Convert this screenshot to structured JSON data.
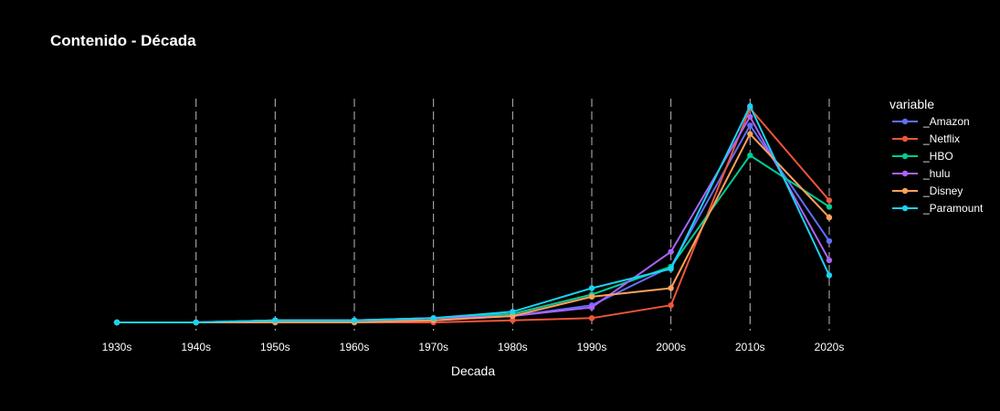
{
  "chart_data": {
    "type": "line",
    "title": "Contenido - Década",
    "xlabel": "Decada",
    "ylabel": "",
    "categories": [
      "1930s",
      "1940s",
      "1950s",
      "1960s",
      "1970s",
      "1980s",
      "1990s",
      "2000s",
      "2010s",
      "2020s"
    ],
    "ylim": [
      0,
      100
    ],
    "grid": "vertical dashed",
    "legend": {
      "title": "variable",
      "placement": "right"
    },
    "series": [
      {
        "name": "_Amazon",
        "color": "#636efa",
        "values": [
          0,
          0,
          1,
          1,
          1,
          3,
          8,
          26,
          92,
          38
        ]
      },
      {
        "name": "_Netflix",
        "color": "#ef553b",
        "values": [
          0,
          0,
          0,
          0,
          0,
          1,
          2,
          8,
          100,
          57
        ]
      },
      {
        "name": "_HBO",
        "color": "#00cc96",
        "values": [
          0,
          0,
          1,
          1,
          2,
          4,
          13,
          26,
          78,
          54
        ]
      },
      {
        "name": "_hulu",
        "color": "#ab63fa",
        "values": [
          0,
          0,
          1,
          1,
          2,
          3,
          7,
          33,
          96,
          29
        ]
      },
      {
        "name": "_Disney",
        "color": "#ffa15a",
        "values": [
          0,
          0,
          0,
          0,
          1,
          3,
          12,
          16,
          88,
          49
        ]
      },
      {
        "name": "_Paramount",
        "color": "#19d3f3",
        "values": [
          0,
          0,
          1,
          1,
          2,
          5,
          16,
          25,
          101,
          22
        ]
      }
    ]
  }
}
